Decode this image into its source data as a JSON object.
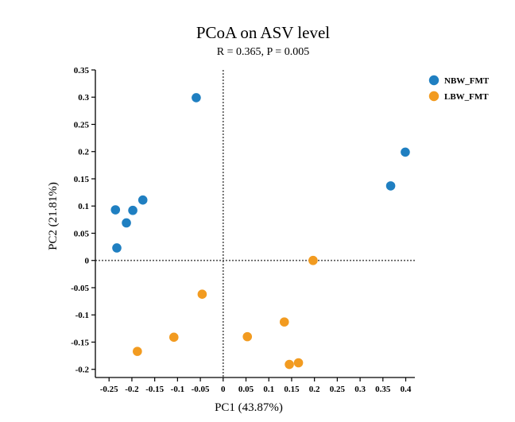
{
  "chart_data": {
    "type": "scatter",
    "title": "PCoA on ASV level",
    "subtitle": "R = 0.365, P = 0.005",
    "xlabel": "PC1 (43.87%)",
    "ylabel": "PC2 (21.81%)",
    "xlim": [
      -0.28,
      0.42
    ],
    "ylim": [
      -0.215,
      0.35
    ],
    "x_ticks": [
      -0.25,
      -0.2,
      -0.15,
      -0.1,
      -0.05,
      0,
      0.05,
      0.1,
      0.15,
      0.2,
      0.25,
      0.3,
      0.35,
      0.4
    ],
    "x_tick_labels": [
      "-0.25",
      "-0.2",
      "-0.15",
      "-0.1",
      "-0.05",
      "0",
      "0.05",
      "0.1",
      "0.15",
      "0.2",
      "0.25",
      "0.3",
      "0.35",
      "0.4"
    ],
    "y_ticks": [
      0.35,
      0.3,
      0.25,
      0.2,
      0.15,
      0.1,
      0.05,
      0,
      -0.05,
      -0.1,
      -0.15,
      -0.2
    ],
    "y_tick_labels": [
      "0.35",
      "0.3",
      "0.25",
      "0.2",
      "0.15",
      "0.1",
      "0.05",
      "0",
      "-0.05",
      "-0.1",
      "-0.15",
      "-0.2"
    ],
    "grid": false,
    "reference_lines": {
      "x": 0,
      "y": 0
    },
    "legend_position": "top-right",
    "series": [
      {
        "name": "NBW_FMT",
        "color": "#1f7fc1",
        "points": [
          {
            "x": -0.059,
            "y": 0.299
          },
          {
            "x": -0.176,
            "y": 0.111
          },
          {
            "x": -0.236,
            "y": 0.093
          },
          {
            "x": -0.198,
            "y": 0.092
          },
          {
            "x": -0.212,
            "y": 0.069
          },
          {
            "x": -0.233,
            "y": 0.023
          },
          {
            "x": 0.367,
            "y": 0.137
          },
          {
            "x": 0.399,
            "y": 0.199
          }
        ]
      },
      {
        "name": "LBW_FMT",
        "color": "#f29b20",
        "points": [
          {
            "x": 0.197,
            "y": 0.0
          },
          {
            "x": -0.046,
            "y": -0.062
          },
          {
            "x": -0.108,
            "y": -0.141
          },
          {
            "x": -0.188,
            "y": -0.167
          },
          {
            "x": 0.053,
            "y": -0.14
          },
          {
            "x": 0.134,
            "y": -0.113
          },
          {
            "x": 0.145,
            "y": -0.191
          },
          {
            "x": 0.165,
            "y": -0.188
          }
        ]
      }
    ]
  }
}
